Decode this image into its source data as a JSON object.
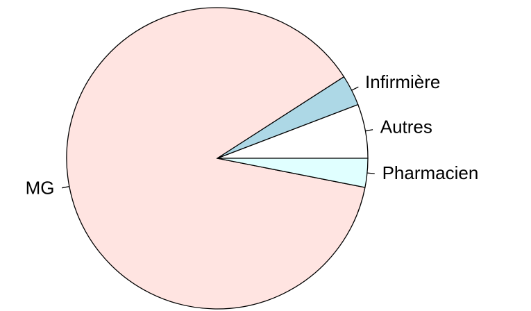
{
  "chart_data": {
    "type": "pie",
    "categories": [
      "Autres",
      "Infirmière",
      "MG",
      "Pharmacien"
    ],
    "values": [
      5.8,
      3.3,
      87.8,
      3.1
    ],
    "colors": [
      "#ffffff",
      "#add8e6",
      "#ffe4e1",
      "#e0ffff"
    ]
  }
}
